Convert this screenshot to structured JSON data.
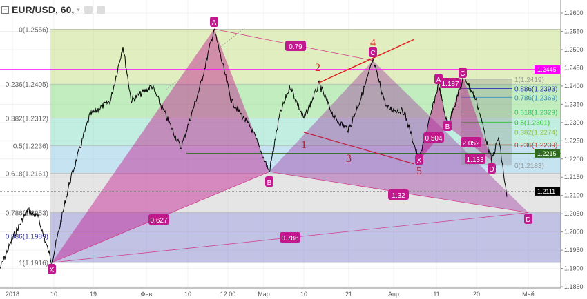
{
  "header": {
    "symbol": "EUR/USD, 60,",
    "caret": "▾",
    "collapse_icon": "minus-square-icon",
    "icons": [
      "eye-icon",
      "gear-icon"
    ]
  },
  "chart_data": {
    "type": "line",
    "title": "EUR/USD, 60,",
    "y_ticks": [
      "1.2600",
      "1.2550",
      "1.2500",
      "1.2450",
      "1.2400",
      "1.2350",
      "1.2300",
      "1.2250",
      "1.2200",
      "1.2150",
      "1.2100",
      "1.2050",
      "1.2000",
      "1.1950",
      "1.1900",
      "1.1850"
    ],
    "ylim": [
      1.185,
      1.26
    ],
    "x_ticks": [
      "2018",
      "10",
      "19",
      "Фев",
      "10",
      "12:00",
      "Мар",
      "10",
      "21",
      "Апр",
      "11",
      "20",
      "Май"
    ],
    "price_path": [
      [
        0,
        1.19
      ],
      [
        20,
        1.199
      ],
      [
        40,
        1.206
      ],
      [
        55,
        1.204
      ],
      [
        75,
        1.1916
      ],
      [
        100,
        1.213
      ],
      [
        130,
        1.232
      ],
      [
        160,
        1.236
      ],
      [
        178,
        1.251
      ],
      [
        190,
        1.236
      ],
      [
        220,
        1.24
      ],
      [
        262,
        1.223
      ],
      [
        290,
        1.24
      ],
      [
        310,
        1.2556
      ],
      [
        335,
        1.236
      ],
      [
        365,
        1.228
      ],
      [
        390,
        1.2165
      ],
      [
        405,
        1.232
      ],
      [
        420,
        1.24
      ],
      [
        440,
        1.231
      ],
      [
        462,
        1.2405
      ],
      [
        485,
        1.231
      ],
      [
        505,
        1.228
      ],
      [
        525,
        1.238
      ],
      [
        540,
        1.247
      ],
      [
        560,
        1.234
      ],
      [
        585,
        1.233
      ],
      [
        607,
        1.2195
      ],
      [
        635,
        1.2405
      ],
      [
        648,
        1.229
      ],
      [
        672,
        1.2427
      ],
      [
        690,
        1.236
      ],
      [
        712,
        1.2195
      ],
      [
        722,
        1.226
      ],
      [
        735,
        1.208
      ]
    ],
    "fib_main": {
      "levels": [
        {
          "label": "0(1.2556)",
          "price": 1.2556,
          "color": "#e89898"
        },
        {
          "label": "0.236(1.2405)",
          "price": 1.2405,
          "color": "#c8e08a"
        },
        {
          "label": "0.382(1.2312)",
          "price": 1.2312,
          "color": "#8fe08a"
        },
        {
          "label": "0.5(1.2236)",
          "price": 1.2236,
          "color": "#8fe0c8"
        },
        {
          "label": "0.618(1.2161)",
          "price": 1.2161,
          "color": "#98cce8"
        },
        {
          "label": "0.786(1.2053)",
          "price": 1.2053,
          "color": "#cfcfcf"
        },
        {
          "label": "0.886(1.1989)",
          "price": 1.1989,
          "color": "#8f8fd0"
        },
        {
          "label": "1(1.1916)",
          "price": 1.1916,
          "color": "#8f8fd0"
        }
      ]
    },
    "fib_small": {
      "levels": [
        {
          "label": "1(1.2419)",
          "price": 1.2419,
          "color": "#999999"
        },
        {
          "label": "0.886(1.2393)",
          "price": 1.2393,
          "color": "#3030b0"
        },
        {
          "label": "0.786(1.2369)",
          "price": 1.2369,
          "color": "#3a8fc0"
        },
        {
          "label": "0.618(1.2329)",
          "price": 1.2329,
          "color": "#30c060"
        },
        {
          "label": "0.5(1.2301)",
          "price": 1.2301,
          "color": "#30c030"
        },
        {
          "label": "0.382(1.2274)",
          "price": 1.2274,
          "color": "#90c030"
        },
        {
          "label": "0.236(1.2239)",
          "price": 1.2239,
          "color": "#d03030"
        },
        {
          "label": "0(1.2183)",
          "price": 1.2183,
          "color": "#999999"
        }
      ]
    },
    "pattern_large": {
      "points": [
        {
          "label": "X",
          "price": 1.1916
        },
        {
          "label": "A",
          "price": 1.2556
        },
        {
          "label": "B",
          "price": 1.2165
        },
        {
          "label": "C",
          "price": 1.247
        },
        {
          "label": "D",
          "price": 1.2053
        }
      ],
      "ratios": [
        "0.627",
        "0.79",
        "1.32",
        "0.786"
      ]
    },
    "pattern_small": {
      "points": [
        {
          "label": "X",
          "price": 1.2195
        },
        {
          "label": "A",
          "price": 1.2405
        },
        {
          "label": "B",
          "price": 1.229
        },
        {
          "label": "C",
          "price": 1.2427
        },
        {
          "label": "D",
          "price": 1.2195
        }
      ],
      "ratios": [
        "0.504",
        "1.187",
        "2.052",
        "1.133"
      ]
    },
    "waves": [
      "1",
      "2",
      "3",
      "4",
      "5"
    ],
    "price_lines": [
      {
        "label": "1.2445",
        "price": 1.2445,
        "color": "#ff00ff"
      },
      {
        "label": "1.2215",
        "price": 1.2215,
        "color": "#2e6b1e"
      },
      {
        "label": "1.2111",
        "price": 1.2111,
        "color": "#000000"
      }
    ],
    "colors": {
      "pattern": "#c2188e",
      "wave": "#e02020"
    }
  }
}
